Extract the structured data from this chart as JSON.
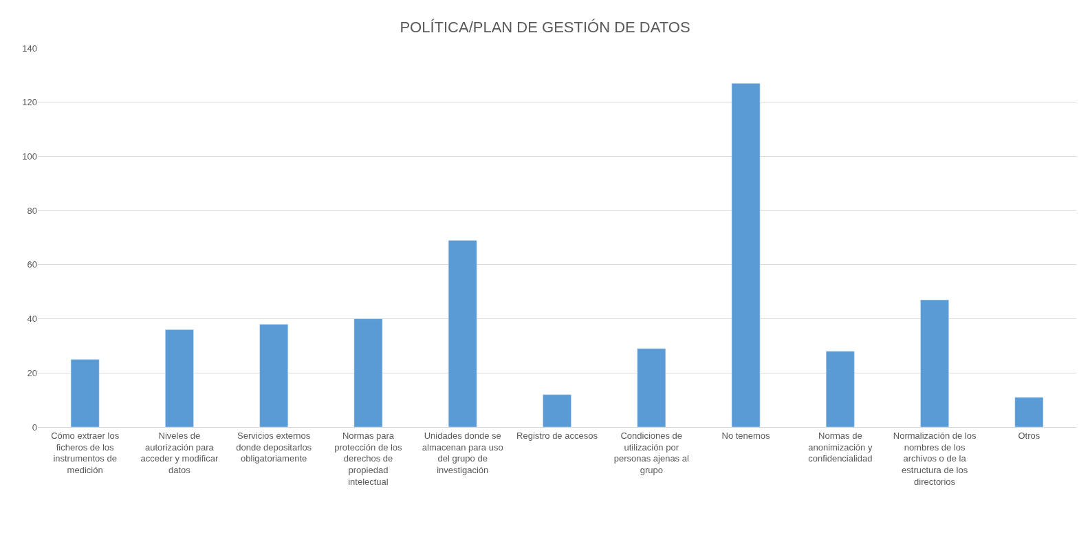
{
  "chart_data": {
    "type": "bar",
    "title": "POLÍTICA/PLAN DE GESTIÓN DE DATOS",
    "categories": [
      "Cómo extraer los ficheros de los instrumentos de medición",
      "Niveles de autorización para acceder y modificar datos",
      "Servicios externos donde depositarlos obligatoriamente",
      "Normas para protección de los derechos de propiedad intelectual",
      "Unidades donde se almacenan para uso del grupo de investigación",
      "Registro de accesos",
      "Condiciones de utilización por personas ajenas al grupo",
      "No tenemos",
      "Normas de anonimización y confidencialidad",
      "Normalización de los nombres de los archivos o de la estructura de los directorios",
      "Otros"
    ],
    "values": [
      25,
      36,
      38,
      40,
      69,
      12,
      29,
      127,
      28,
      47,
      11
    ],
    "color": "#5b9bd5",
    "ylim": [
      0,
      140
    ],
    "yticks": [
      0,
      20,
      40,
      60,
      80,
      100,
      120,
      140
    ],
    "grid": "y"
  }
}
